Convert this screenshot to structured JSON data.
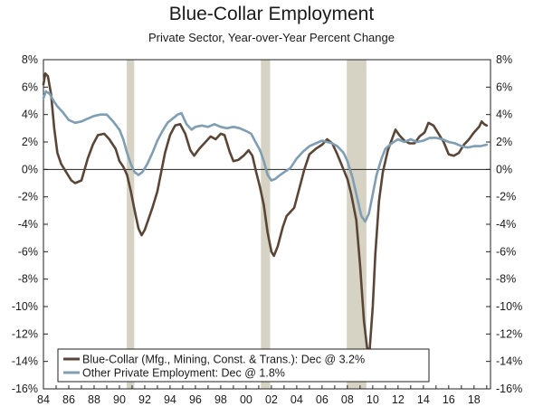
{
  "chart_data": {
    "type": "line",
    "title": "Blue-Collar Employment",
    "subtitle": "Private Sector, Year-over-Year Percent Change",
    "xlim": [
      1984,
      2019.3
    ],
    "ylim": [
      -16,
      8
    ],
    "x_ticks": [
      1984,
      1986,
      1988,
      1990,
      1992,
      1994,
      1996,
      1998,
      2000,
      2002,
      2004,
      2006,
      2008,
      2010,
      2012,
      2014,
      2016,
      2018
    ],
    "x_tick_labels": [
      "84",
      "86",
      "88",
      "90",
      "92",
      "94",
      "96",
      "98",
      "00",
      "02",
      "04",
      "06",
      "08",
      "10",
      "12",
      "14",
      "16",
      "18"
    ],
    "y_ticks": [
      -16,
      -14,
      -12,
      -10,
      -8,
      -6,
      -4,
      -2,
      0,
      2,
      4,
      6,
      8
    ],
    "y_tick_labels": [
      "-16%",
      "-14%",
      "-12%",
      "-10%",
      "-8%",
      "-6%",
      "-4%",
      "-2%",
      "0%",
      "2%",
      "4%",
      "6%",
      "8%"
    ],
    "grid": false,
    "recessions": [
      [
        1990.58,
        1991.17
      ],
      [
        2001.17,
        2001.9
      ],
      [
        2007.95,
        2009.5
      ]
    ],
    "legend_position": "bottom-left",
    "colors": {
      "blue_collar": "#5a4637",
      "other_private": "#7f9db3",
      "recession": "#d6d3c4"
    },
    "series": [
      {
        "name": "Blue-Collar (Mfg., Mining, Const. & Trans.): Dec @ 3.2%",
        "key": "blue_collar",
        "points": [
          [
            1984.0,
            6.2
          ],
          [
            1984.15,
            7.0
          ],
          [
            1984.35,
            6.8
          ],
          [
            1984.6,
            5.5
          ],
          [
            1984.85,
            3.0
          ],
          [
            1985.1,
            1.2
          ],
          [
            1985.4,
            0.4
          ],
          [
            1985.8,
            -0.2
          ],
          [
            1986.2,
            -0.8
          ],
          [
            1986.5,
            -1.0
          ],
          [
            1987.0,
            -0.8
          ],
          [
            1987.5,
            0.8
          ],
          [
            1987.9,
            1.8
          ],
          [
            1988.3,
            2.5
          ],
          [
            1988.8,
            2.6
          ],
          [
            1989.2,
            2.2
          ],
          [
            1989.7,
            1.5
          ],
          [
            1990.0,
            0.6
          ],
          [
            1990.3,
            0.2
          ],
          [
            1990.6,
            -0.4
          ],
          [
            1990.9,
            -1.6
          ],
          [
            1991.2,
            -3.0
          ],
          [
            1991.5,
            -4.3
          ],
          [
            1991.75,
            -4.8
          ],
          [
            1992.0,
            -4.4
          ],
          [
            1992.3,
            -3.6
          ],
          [
            1992.6,
            -2.8
          ],
          [
            1993.0,
            -1.6
          ],
          [
            1993.3,
            -0.2
          ],
          [
            1993.6,
            1.2
          ],
          [
            1994.0,
            2.5
          ],
          [
            1994.4,
            3.2
          ],
          [
            1994.8,
            3.3
          ],
          [
            1995.2,
            2.6
          ],
          [
            1995.6,
            1.4
          ],
          [
            1995.9,
            1.0
          ],
          [
            1996.3,
            1.5
          ],
          [
            1996.8,
            2.0
          ],
          [
            1997.2,
            2.4
          ],
          [
            1997.6,
            2.2
          ],
          [
            1998.0,
            2.6
          ],
          [
            1998.3,
            2.5
          ],
          [
            1998.7,
            1.3
          ],
          [
            1999.0,
            0.6
          ],
          [
            1999.4,
            0.7
          ],
          [
            1999.8,
            1.0
          ],
          [
            2000.2,
            1.4
          ],
          [
            2000.5,
            1.0
          ],
          [
            2000.8,
            -0.2
          ],
          [
            2001.1,
            -1.3
          ],
          [
            2001.4,
            -2.6
          ],
          [
            2001.7,
            -4.6
          ],
          [
            2002.0,
            -6.0
          ],
          [
            2002.2,
            -6.3
          ],
          [
            2002.5,
            -5.6
          ],
          [
            2002.9,
            -4.2
          ],
          [
            2003.2,
            -3.4
          ],
          [
            2003.5,
            -3.1
          ],
          [
            2003.8,
            -2.8
          ],
          [
            2004.2,
            -1.4
          ],
          [
            2004.6,
            0.0
          ],
          [
            2005.0,
            1.1
          ],
          [
            2005.5,
            1.5
          ],
          [
            2006.0,
            1.8
          ],
          [
            2006.4,
            2.2
          ],
          [
            2006.8,
            1.9
          ],
          [
            2007.2,
            1.1
          ],
          [
            2007.6,
            0.2
          ],
          [
            2008.0,
            -0.7
          ],
          [
            2008.3,
            -1.8
          ],
          [
            2008.7,
            -3.7
          ],
          [
            2009.0,
            -7.0
          ],
          [
            2009.3,
            -11.0
          ],
          [
            2009.55,
            -13.0
          ],
          [
            2009.75,
            -13.2
          ],
          [
            2010.0,
            -10.0
          ],
          [
            2010.2,
            -6.2
          ],
          [
            2010.5,
            -2.3
          ],
          [
            2010.8,
            -0.2
          ],
          [
            2011.2,
            1.4
          ],
          [
            2011.6,
            2.4
          ],
          [
            2011.8,
            2.9
          ],
          [
            2012.1,
            2.5
          ],
          [
            2012.5,
            2.1
          ],
          [
            2012.9,
            1.9
          ],
          [
            2013.3,
            1.9
          ],
          [
            2013.7,
            2.4
          ],
          [
            2014.1,
            2.7
          ],
          [
            2014.4,
            3.4
          ],
          [
            2014.8,
            3.2
          ],
          [
            2015.2,
            2.6
          ],
          [
            2015.6,
            2.0
          ],
          [
            2016.0,
            1.1
          ],
          [
            2016.4,
            1.0
          ],
          [
            2016.8,
            1.2
          ],
          [
            2017.2,
            1.8
          ],
          [
            2017.6,
            2.2
          ],
          [
            2018.0,
            2.7
          ],
          [
            2018.4,
            3.1
          ],
          [
            2018.6,
            3.5
          ],
          [
            2018.8,
            3.3
          ],
          [
            2019.0,
            3.2
          ]
        ]
      },
      {
        "name": "Other Private Employment: Dec @ 1.8%",
        "key": "other_private",
        "points": [
          [
            1984.0,
            5.2
          ],
          [
            1984.2,
            5.7
          ],
          [
            1984.5,
            5.5
          ],
          [
            1984.8,
            5.0
          ],
          [
            1985.1,
            4.6
          ],
          [
            1985.5,
            4.2
          ],
          [
            1986.0,
            3.6
          ],
          [
            1986.5,
            3.4
          ],
          [
            1987.0,
            3.5
          ],
          [
            1987.5,
            3.7
          ],
          [
            1988.0,
            3.9
          ],
          [
            1988.5,
            4.0
          ],
          [
            1989.0,
            4.0
          ],
          [
            1989.5,
            3.5
          ],
          [
            1990.0,
            2.9
          ],
          [
            1990.3,
            2.2
          ],
          [
            1990.6,
            1.2
          ],
          [
            1990.9,
            0.4
          ],
          [
            1991.2,
            -0.2
          ],
          [
            1991.5,
            -0.4
          ],
          [
            1991.8,
            -0.2
          ],
          [
            1992.2,
            0.4
          ],
          [
            1992.6,
            1.2
          ],
          [
            1993.0,
            2.1
          ],
          [
            1993.4,
            2.8
          ],
          [
            1993.8,
            3.4
          ],
          [
            1994.2,
            3.7
          ],
          [
            1994.6,
            4.0
          ],
          [
            1994.9,
            4.1
          ],
          [
            1995.3,
            3.3
          ],
          [
            1995.7,
            2.9
          ],
          [
            1996.0,
            3.1
          ],
          [
            1996.5,
            3.2
          ],
          [
            1997.0,
            3.1
          ],
          [
            1997.5,
            3.3
          ],
          [
            1998.0,
            3.1
          ],
          [
            1998.5,
            3.0
          ],
          [
            1999.0,
            3.1
          ],
          [
            1999.5,
            3.0
          ],
          [
            2000.0,
            2.8
          ],
          [
            2000.4,
            2.6
          ],
          [
            2000.8,
            1.9
          ],
          [
            2001.1,
            1.4
          ],
          [
            2001.4,
            0.6
          ],
          [
            2001.7,
            -0.4
          ],
          [
            2002.0,
            -0.8
          ],
          [
            2002.3,
            -0.7
          ],
          [
            2002.7,
            -0.4
          ],
          [
            2003.0,
            -0.2
          ],
          [
            2003.5,
            0.1
          ],
          [
            2004.0,
            0.8
          ],
          [
            2004.5,
            1.3
          ],
          [
            2005.0,
            1.7
          ],
          [
            2005.5,
            1.9
          ],
          [
            2006.0,
            2.1
          ],
          [
            2006.4,
            2.0
          ],
          [
            2006.8,
            1.9
          ],
          [
            2007.2,
            1.7
          ],
          [
            2007.7,
            1.2
          ],
          [
            2008.0,
            0.6
          ],
          [
            2008.4,
            -0.6
          ],
          [
            2008.8,
            -2.2
          ],
          [
            2009.1,
            -3.4
          ],
          [
            2009.4,
            -3.8
          ],
          [
            2009.7,
            -3.2
          ],
          [
            2010.0,
            -1.8
          ],
          [
            2010.3,
            -0.4
          ],
          [
            2010.7,
            0.8
          ],
          [
            2011.0,
            1.5
          ],
          [
            2011.5,
            1.9
          ],
          [
            2012.0,
            2.2
          ],
          [
            2012.5,
            2.0
          ],
          [
            2013.0,
            2.2
          ],
          [
            2013.5,
            2.0
          ],
          [
            2014.0,
            2.1
          ],
          [
            2014.5,
            2.3
          ],
          [
            2015.0,
            2.3
          ],
          [
            2015.5,
            2.2
          ],
          [
            2016.0,
            2.0
          ],
          [
            2016.5,
            1.9
          ],
          [
            2017.0,
            1.7
          ],
          [
            2017.5,
            1.6
          ],
          [
            2018.0,
            1.7
          ],
          [
            2018.5,
            1.7
          ],
          [
            2019.0,
            1.8
          ]
        ]
      }
    ]
  }
}
